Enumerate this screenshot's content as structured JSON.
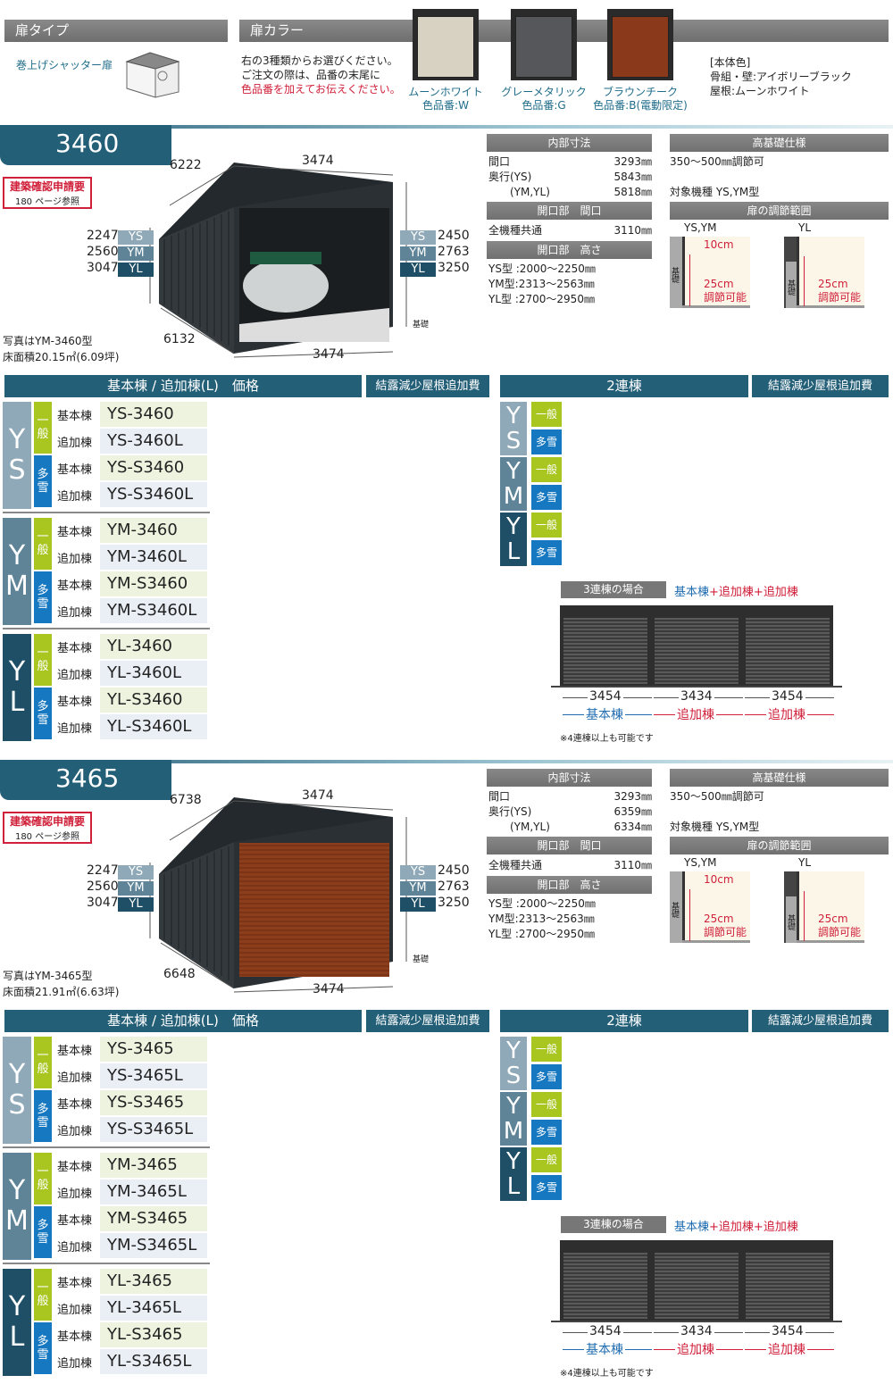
{
  "header": {
    "door_type_title": "扉タイプ",
    "door_type_value": "巻上げシャッター扉",
    "door_color_title": "扉カラー",
    "door_color_desc": [
      "右の3種類からお選びください。",
      "ご注文の際は、品番の末尾に",
      "色品番を加えてお伝えください。"
    ],
    "colors": [
      {
        "name": "ムーンホワイト",
        "code": "色品番:W",
        "hex": "#d8d2c2"
      },
      {
        "name": "グレーメタリック",
        "code": "色品番:G",
        "hex": "#55575a"
      },
      {
        "name": "ブラウンチーク",
        "code": "色品番:B(電動限定)",
        "hex": "#8a3a1a"
      }
    ],
    "body_color_title": "[本体色]",
    "body_color_lines": [
      "骨組・壁:アイボリーブラック",
      "屋根:ムーンホワイト"
    ]
  },
  "colors": {
    "tab": "#245f78",
    "ys": "#8fa9b8",
    "ym": "#5f8498",
    "yl": "#1e4f66",
    "general": "#a8c520",
    "snow": "#1678c0",
    "red": "#d0203a"
  },
  "sections": [
    {
      "model": "3460",
      "notice": "建築確認申請要",
      "notice_ref": "180 ページ参照",
      "dims": {
        "depth_top": "6222",
        "width_top": "3474",
        "depth_bottom": "6132",
        "width_bottom": "3474",
        "foundation": "基礎"
      },
      "left_heights": [
        {
          "v": "2247",
          "t": "YS"
        },
        {
          "v": "2560",
          "t": "YM"
        },
        {
          "v": "3047",
          "t": "YL"
        }
      ],
      "right_heights": [
        {
          "v": "2450",
          "t": "YS"
        },
        {
          "v": "2763",
          "t": "YM"
        },
        {
          "v": "3250",
          "t": "YL"
        }
      ],
      "photo_note": "写真はYM-3460型",
      "floor_area": "床面積20.15㎡(6.09坪)",
      "door": "open",
      "specs": {
        "inner_title": "内部寸法",
        "inner": [
          {
            "k": "間口",
            "v": "3293㎜"
          },
          {
            "k": "奥行(YS)",
            "v": "5843㎜"
          },
          {
            "k": "　　(YM,YL)",
            "v": "5818㎜"
          }
        ],
        "open_w_title": "開口部　間口",
        "open_w": {
          "k": "全機種共通",
          "v": "3110㎜"
        },
        "open_h_title": "開口部　高さ",
        "open_h": [
          "YS型 :2000〜2250㎜",
          "YM型:2313〜2563㎜",
          "YL型 :2700〜2950㎜"
        ],
        "high_title": "高基礎仕様",
        "high_range": "350〜500㎜調節可",
        "high_target": "対象機種 YS,YM型",
        "adjust_title": "扉の調節範囲",
        "adjust": [
          {
            "label": "YS,YM",
            "a": "10cm",
            "b": "25cm",
            "c": "調節可能",
            "base": "基礎"
          },
          {
            "label": "YL",
            "b": "25cm",
            "c": "調節可能",
            "base": "基礎"
          }
        ]
      },
      "price_header": "基本棟 / 追加棟(L)　価格",
      "condense_header": "結露減少屋根追加費",
      "double_header": "2連棟",
      "condense_header2": "結露減少屋根追加費",
      "groups": [
        {
          "code": "YS",
          "kinds": [
            {
              "label": "一般",
              "rows": [
                {
                  "k": "基本棟",
                  "m": "YS-3460"
                },
                {
                  "k": "追加棟",
                  "m": "YS-3460L"
                }
              ]
            },
            {
              "label": "多雪",
              "rows": [
                {
                  "k": "基本棟",
                  "m": "YS-S3460"
                },
                {
                  "k": "追加棟",
                  "m": "YS-S3460L"
                }
              ]
            }
          ]
        },
        {
          "code": "YM",
          "kinds": [
            {
              "label": "一般",
              "rows": [
                {
                  "k": "基本棟",
                  "m": "YM-3460"
                },
                {
                  "k": "追加棟",
                  "m": "YM-3460L"
                }
              ]
            },
            {
              "label": "多雪",
              "rows": [
                {
                  "k": "基本棟",
                  "m": "YM-S3460"
                },
                {
                  "k": "追加棟",
                  "m": "YM-S3460L"
                }
              ]
            }
          ]
        },
        {
          "code": "YL",
          "kinds": [
            {
              "label": "一般",
              "rows": [
                {
                  "k": "基本棟",
                  "m": "YL-3460"
                },
                {
                  "k": "追加棟",
                  "m": "YL-3460L"
                }
              ]
            },
            {
              "label": "多雪",
              "rows": [
                {
                  "k": "基本棟",
                  "m": "YL-S3460"
                },
                {
                  "k": "追加棟",
                  "m": "YL-S3460L"
                }
              ]
            }
          ]
        }
      ],
      "triple": {
        "title": "3連棟の場合",
        "formula": [
          "基本棟",
          "+追加棟",
          "+追加棟"
        ],
        "widths": [
          "3454",
          "3434",
          "3454"
        ],
        "labels": [
          "基本棟",
          "追加棟",
          "追加棟"
        ],
        "note": "※4連棟以上も可能です"
      }
    },
    {
      "model": "3465",
      "notice": "建築確認申請要",
      "notice_ref": "180 ページ参照",
      "dims": {
        "depth_top": "6738",
        "width_top": "3474",
        "depth_bottom": "6648",
        "width_bottom": "3474",
        "foundation": "基礎"
      },
      "left_heights": [
        {
          "v": "2247",
          "t": "YS"
        },
        {
          "v": "2560",
          "t": "YM"
        },
        {
          "v": "3047",
          "t": "YL"
        }
      ],
      "right_heights": [
        {
          "v": "2450",
          "t": "YS"
        },
        {
          "v": "2763",
          "t": "YM"
        },
        {
          "v": "3250",
          "t": "YL"
        }
      ],
      "photo_note": "写真はYM-3465型",
      "floor_area": "床面積21.91㎡(6.63坪)",
      "door": "brown",
      "specs": {
        "inner_title": "内部寸法",
        "inner": [
          {
            "k": "間口",
            "v": "3293㎜"
          },
          {
            "k": "奥行(YS)",
            "v": "6359㎜"
          },
          {
            "k": "　　(YM,YL)",
            "v": "6334㎜"
          }
        ],
        "open_w_title": "開口部　間口",
        "open_w": {
          "k": "全機種共通",
          "v": "3110㎜"
        },
        "open_h_title": "開口部　高さ",
        "open_h": [
          "YS型 :2000〜2250㎜",
          "YM型:2313〜2563㎜",
          "YL型 :2700〜2950㎜"
        ],
        "high_title": "高基礎仕様",
        "high_range": "350〜500㎜調節可",
        "high_target": "対象機種 YS,YM型",
        "adjust_title": "扉の調節範囲",
        "adjust": [
          {
            "label": "YS,YM",
            "a": "10cm",
            "b": "25cm",
            "c": "調節可能",
            "base": "基礎"
          },
          {
            "label": "YL",
            "b": "25cm",
            "c": "調節可能",
            "base": "基礎"
          }
        ]
      },
      "price_header": "基本棟 / 追加棟(L)　価格",
      "condense_header": "結露減少屋根追加費",
      "double_header": "2連棟",
      "condense_header2": "結露減少屋根追加費",
      "groups": [
        {
          "code": "YS",
          "kinds": [
            {
              "label": "一般",
              "rows": [
                {
                  "k": "基本棟",
                  "m": "YS-3465"
                },
                {
                  "k": "追加棟",
                  "m": "YS-3465L"
                }
              ]
            },
            {
              "label": "多雪",
              "rows": [
                {
                  "k": "基本棟",
                  "m": "YS-S3465"
                },
                {
                  "k": "追加棟",
                  "m": "YS-S3465L"
                }
              ]
            }
          ]
        },
        {
          "code": "YM",
          "kinds": [
            {
              "label": "一般",
              "rows": [
                {
                  "k": "基本棟",
                  "m": "YM-3465"
                },
                {
                  "k": "追加棟",
                  "m": "YM-3465L"
                }
              ]
            },
            {
              "label": "多雪",
              "rows": [
                {
                  "k": "基本棟",
                  "m": "YM-S3465"
                },
                {
                  "k": "追加棟",
                  "m": "YM-S3465L"
                }
              ]
            }
          ]
        },
        {
          "code": "YL",
          "kinds": [
            {
              "label": "一般",
              "rows": [
                {
                  "k": "基本棟",
                  "m": "YL-3465"
                },
                {
                  "k": "追加棟",
                  "m": "YL-3465L"
                }
              ]
            },
            {
              "label": "多雪",
              "rows": [
                {
                  "k": "基本棟",
                  "m": "YL-S3465"
                },
                {
                  "k": "追加棟",
                  "m": "YL-S3465L"
                }
              ]
            }
          ]
        }
      ],
      "triple": {
        "title": "3連棟の場合",
        "formula": [
          "基本棟",
          "+追加棟",
          "+追加棟"
        ],
        "widths": [
          "3454",
          "3434",
          "3454"
        ],
        "labels": [
          "基本棟",
          "追加棟",
          "追加棟"
        ],
        "note": "※4連棟以上も可能です"
      }
    }
  ]
}
